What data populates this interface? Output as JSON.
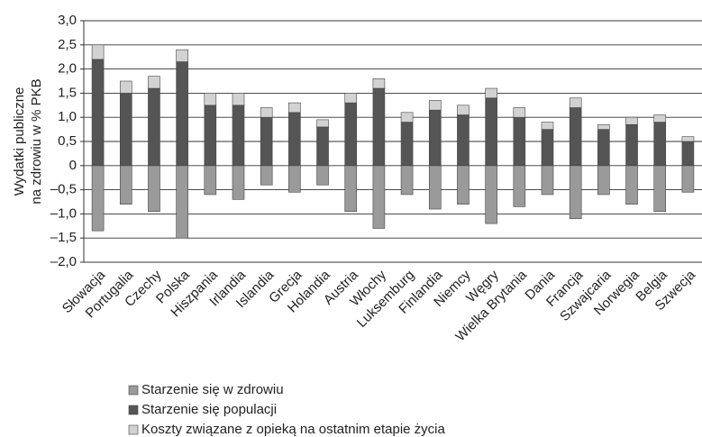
{
  "chart_data": {
    "type": "stacked_bar",
    "ylabel": [
      "Wydatki publiczne",
      "na zdrowiu w % PKB"
    ],
    "categories": [
      "Słowacja",
      "Portugalia",
      "Czechy",
      "Polska",
      "Hiszpania",
      "Irlandia",
      "Islandia",
      "Grecja",
      "Holandia",
      "Austria",
      "Włochy",
      "Luksemburg",
      "Finlandia",
      "Niemcy",
      "Węgry",
      "Wielka Brytania",
      "Dania",
      "Francja",
      "Szwajcaria",
      "Norwegia",
      "Belgia",
      "Szwecja"
    ],
    "series": [
      {
        "name": "Starzenie się w zdrowiu",
        "color": "#9a9a9a",
        "values": [
          -1.35,
          -0.8,
          -0.95,
          -1.5,
          -0.6,
          -0.7,
          -0.4,
          -0.55,
          -0.4,
          -0.95,
          -1.3,
          -0.6,
          -0.9,
          -0.8,
          -1.2,
          -0.85,
          -0.6,
          -1.1,
          -0.6,
          -0.8,
          -0.95,
          -0.55
        ]
      },
      {
        "name": "Starzenie się populacji",
        "color": "#555555",
        "values": [
          2.2,
          1.5,
          1.6,
          2.15,
          1.25,
          1.25,
          1.0,
          1.1,
          0.8,
          1.3,
          1.6,
          0.9,
          1.15,
          1.05,
          1.4,
          1.0,
          0.75,
          1.2,
          0.75,
          0.85,
          0.9,
          0.5
        ]
      },
      {
        "name": "Koszty związane z opieką na ostatnim etapie życia",
        "color": "#d2d2d2",
        "values": [
          0.3,
          0.25,
          0.25,
          0.25,
          0.25,
          0.25,
          0.2,
          0.2,
          0.15,
          0.2,
          0.2,
          0.2,
          0.2,
          0.2,
          0.2,
          0.2,
          0.15,
          0.2,
          0.1,
          0.15,
          0.15,
          0.1
        ]
      }
    ],
    "ylim": [
      -2.0,
      3.0
    ],
    "yticks": [
      {
        "value": -2.0,
        "label": "–2,0"
      },
      {
        "value": -1.5,
        "label": "–1,5"
      },
      {
        "value": -1.0,
        "label": "–1,0"
      },
      {
        "value": -0.5,
        "label": "–0,5"
      },
      0,
      {
        "value": 0.5,
        "label": "0,5"
      },
      {
        "value": 1.0,
        "label": "1,0"
      },
      {
        "value": 1.5,
        "label": "1,5"
      },
      {
        "value": 2.0,
        "label": "2,0"
      },
      {
        "value": 2.5,
        "label": "2,5"
      },
      {
        "value": 3.0,
        "label": "3,0"
      }
    ],
    "grid": true
  }
}
